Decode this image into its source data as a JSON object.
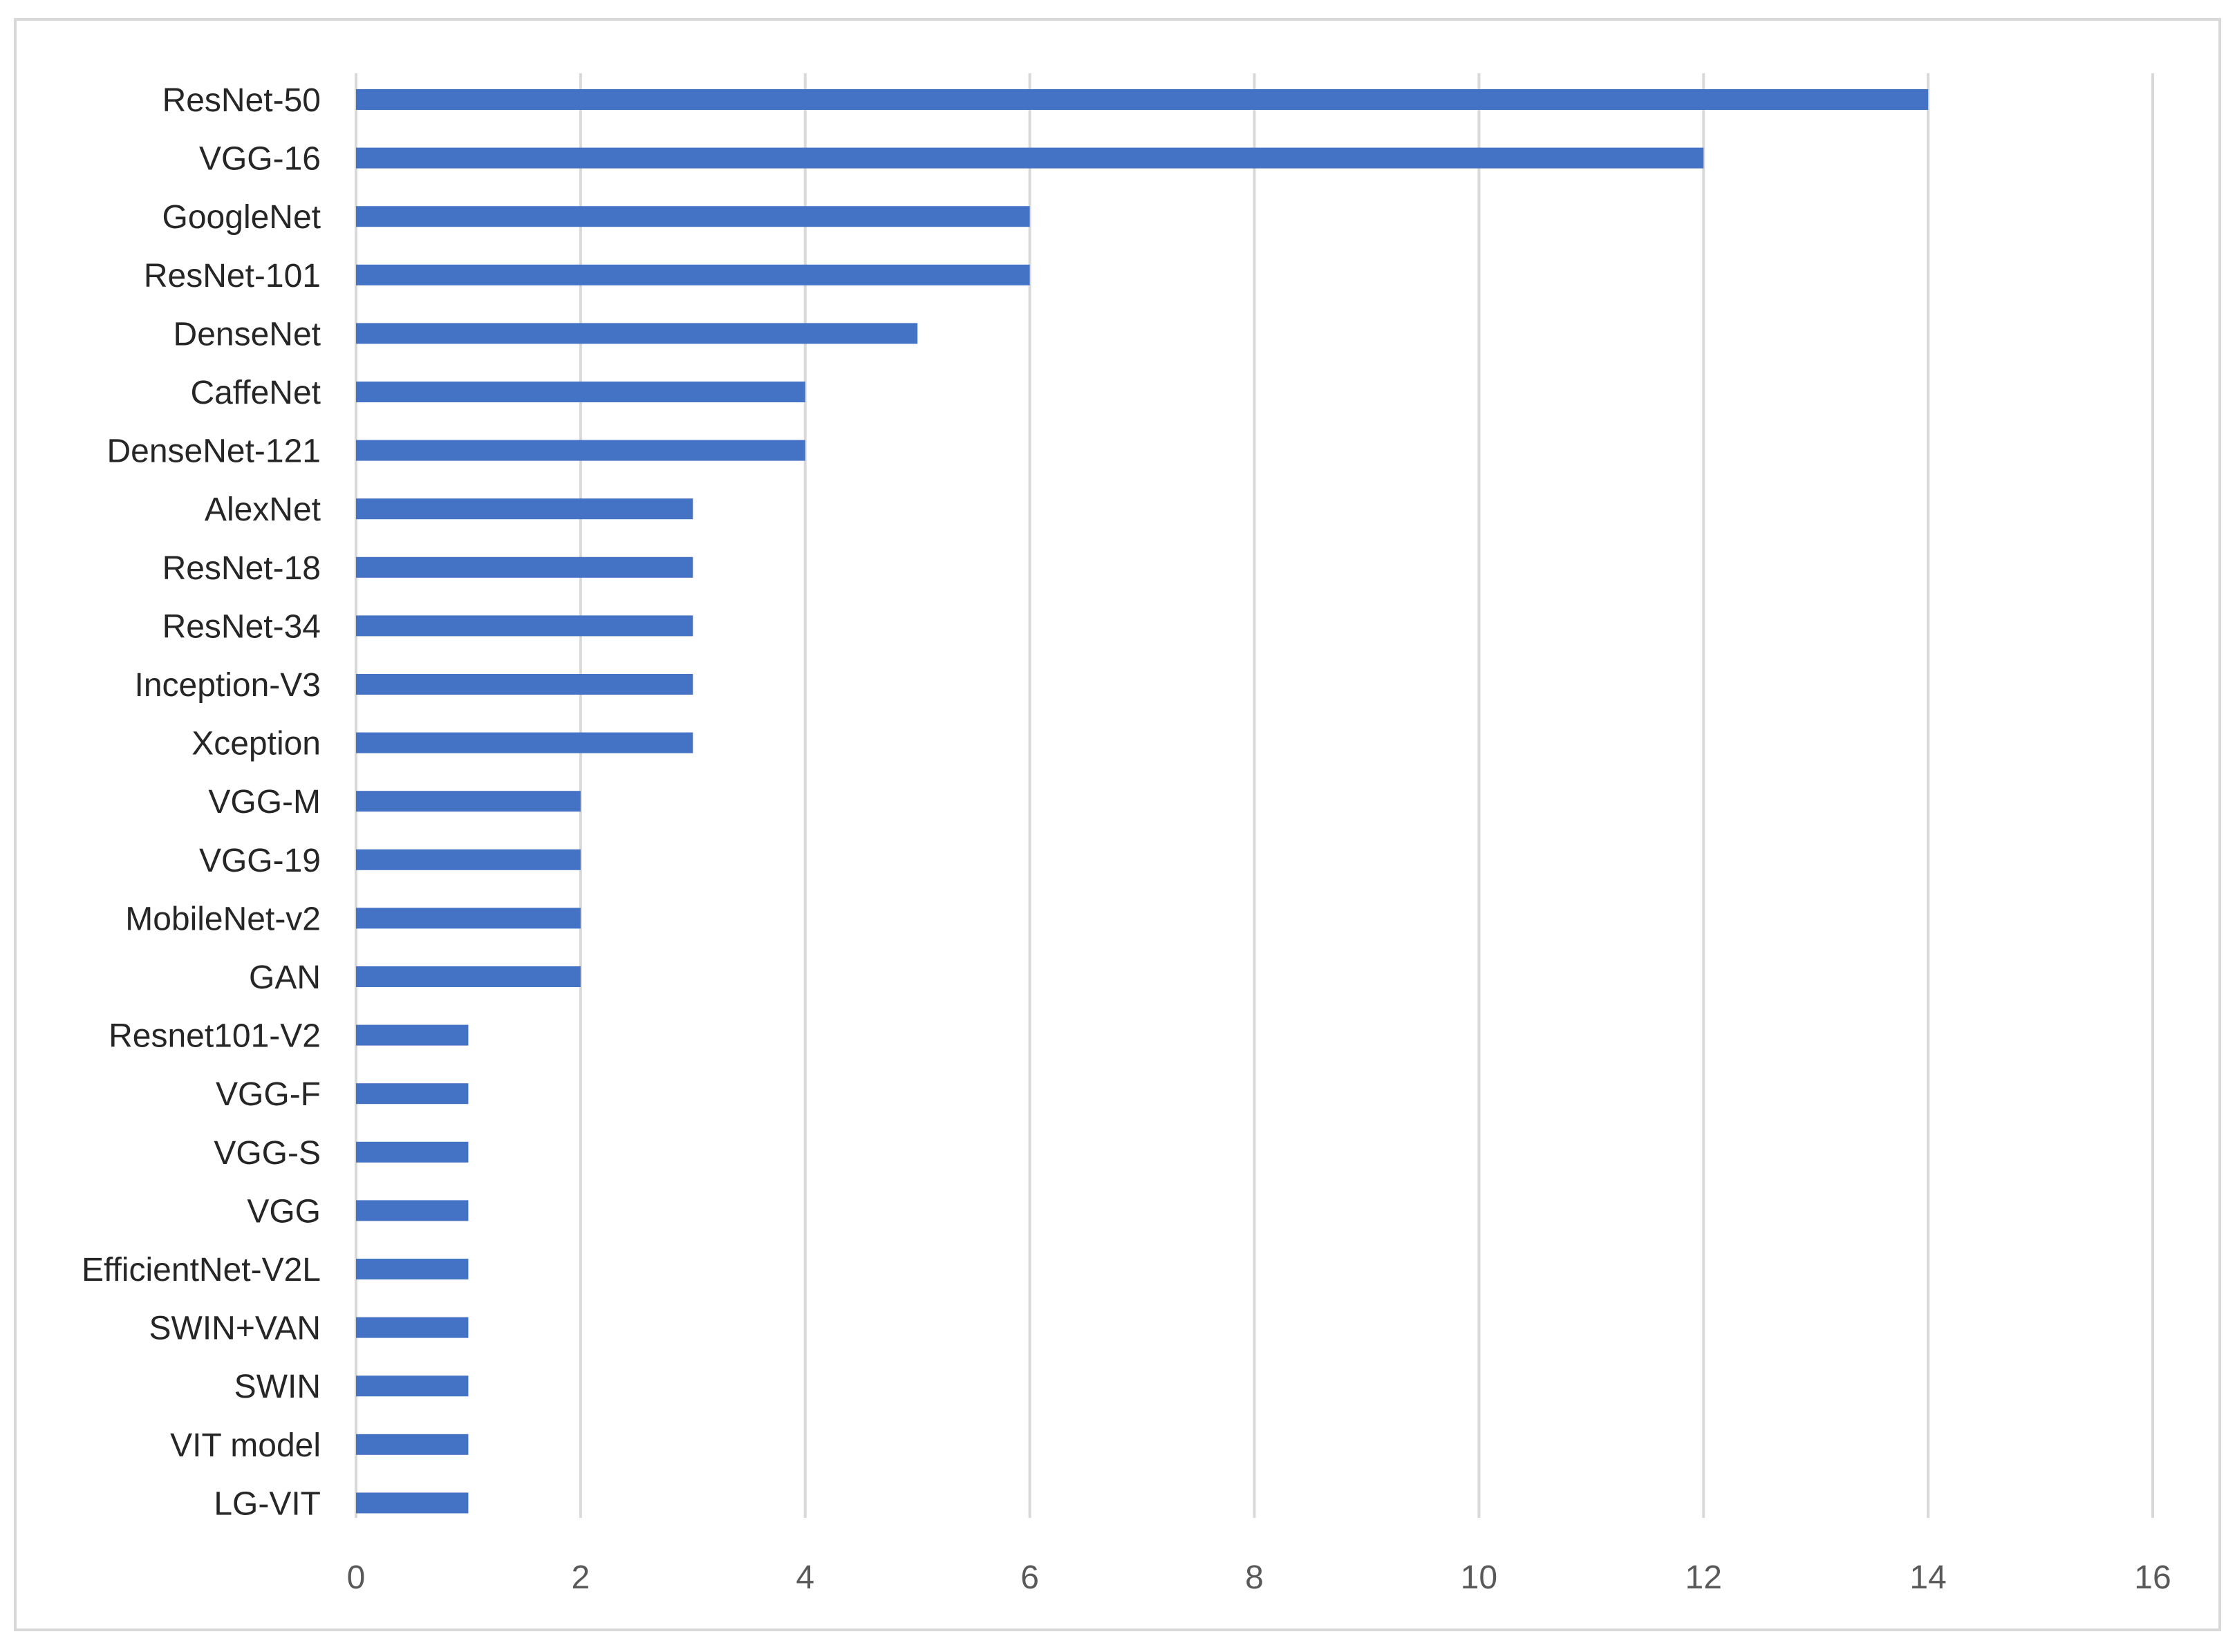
{
  "chart_data": {
    "type": "bar",
    "orientation": "horizontal",
    "categories": [
      "ResNet-50",
      "VGG-16",
      "GoogleNet",
      "ResNet-101",
      "DenseNet",
      "CaffeNet",
      "DenseNet-121",
      "AlexNet",
      "ResNet-18",
      "ResNet-34",
      "Inception-V3",
      "Xception",
      "VGG-M",
      "VGG-19",
      "MobileNet-v2",
      "GAN",
      "Resnet101-V2",
      "VGG-F",
      "VGG-S",
      "VGG",
      "EfficientNet-V2L",
      "SWIN+VAN",
      "SWIN",
      "VIT model",
      "LG-VIT"
    ],
    "values": [
      14,
      12,
      6,
      6,
      5,
      4,
      4,
      3,
      3,
      3,
      3,
      3,
      2,
      2,
      2,
      2,
      1,
      1,
      1,
      1,
      1,
      1,
      1,
      1,
      1
    ],
    "xlim": [
      0,
      16
    ],
    "x_ticks": [
      "0",
      "2",
      "4",
      "6",
      "8",
      "10",
      "12",
      "14",
      "16"
    ],
    "grid": "vertical",
    "bar_color": "#4472c4",
    "grid_color": "#d9d9d9",
    "title": "",
    "xlabel": "",
    "ylabel": ""
  }
}
